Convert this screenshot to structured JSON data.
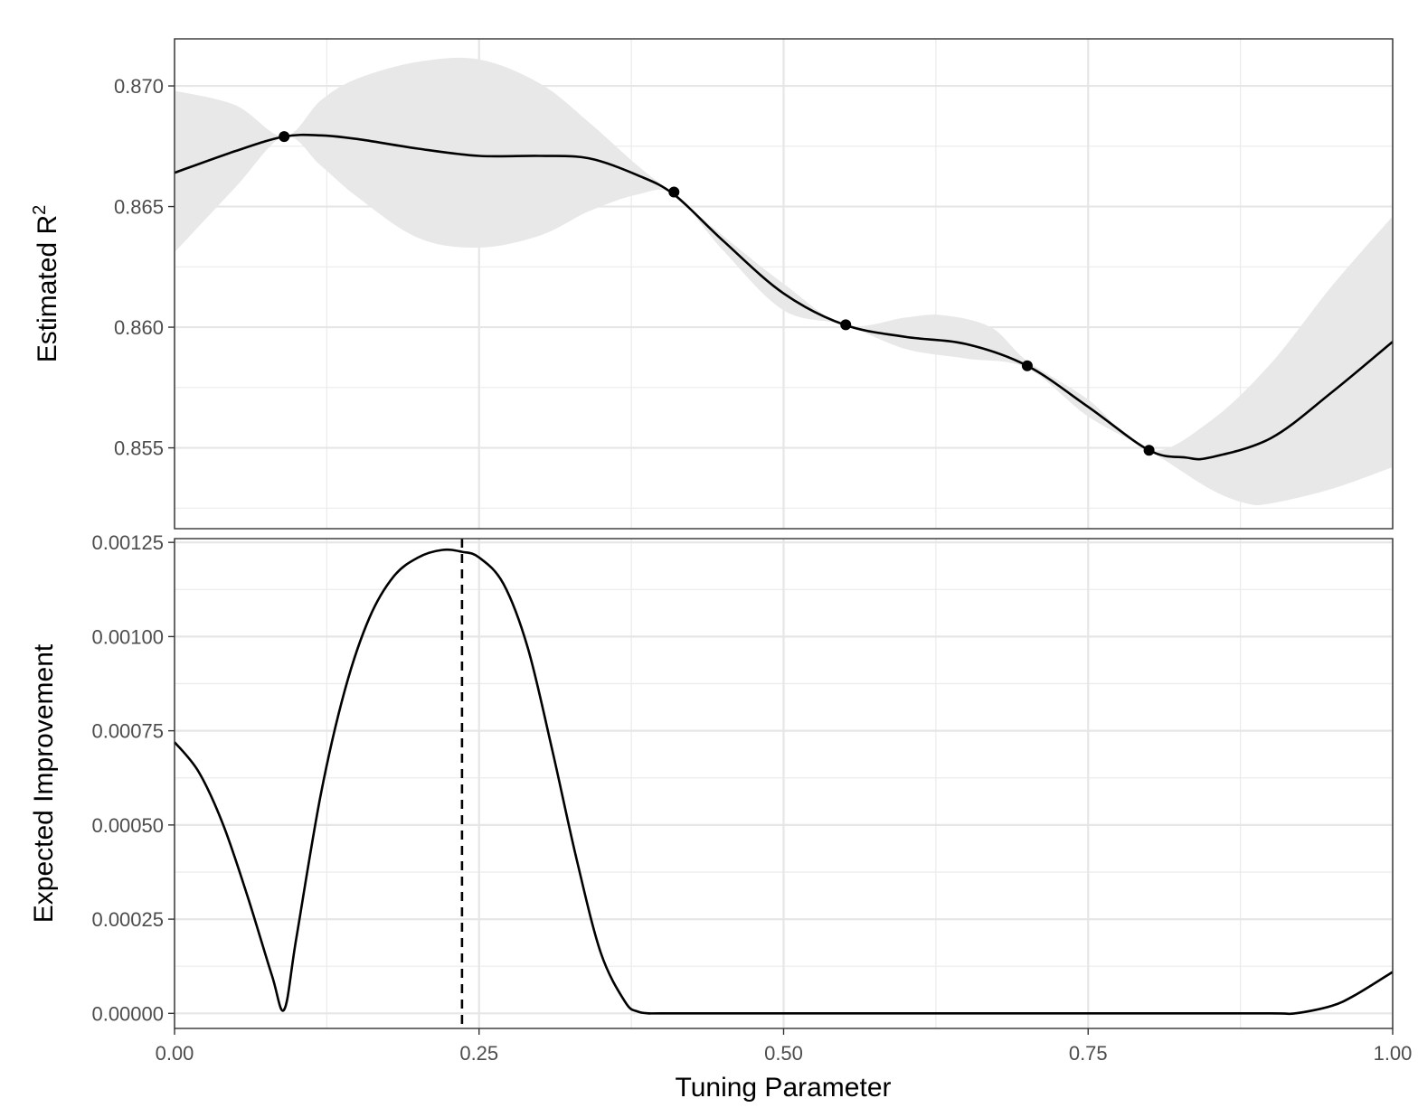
{
  "figure": {
    "xlabel": "Tuning Parameter",
    "x_ticks": [
      "0.00",
      "0.25",
      "0.50",
      "0.75",
      "1.00"
    ]
  },
  "chart_data": [
    {
      "type": "line",
      "panel": "top",
      "ylabel": "Estimated R",
      "ylabel_superscript": "2",
      "xlabel": "Tuning Parameter",
      "xlim": [
        0,
        1
      ],
      "ylim": [
        0.85165,
        0.87195
      ],
      "grid": true,
      "x_ticks": [
        0,
        0.25,
        0.5,
        0.75,
        1.0
      ],
      "y_ticks": [
        0.855,
        0.86,
        0.865,
        0.87
      ],
      "y_tick_labels": [
        "0.855",
        "0.860",
        "0.865",
        "0.870"
      ],
      "colors": {
        "line": "#000000",
        "band": "#e8e8e8",
        "points": "#000000"
      },
      "series": [
        {
          "role": "mean",
          "x": [
            0.0,
            0.05,
            0.09,
            0.12,
            0.15,
            0.2,
            0.25,
            0.3,
            0.34,
            0.38,
            0.41,
            0.45,
            0.5,
            0.55,
            0.6,
            0.65,
            0.7,
            0.75,
            0.8,
            0.83,
            0.85,
            0.9,
            0.95,
            1.0
          ],
          "y": [
            0.8664,
            0.8673,
            0.8679,
            0.86795,
            0.8678,
            0.8674,
            0.8671,
            0.8671,
            0.867,
            0.8663,
            0.8655,
            0.8636,
            0.8614,
            0.8601,
            0.8596,
            0.8593,
            0.8584,
            0.8567,
            0.8549,
            0.8546,
            0.8546,
            0.8554,
            0.8573,
            0.8594
          ]
        },
        {
          "role": "band_upper",
          "x": [
            0.0,
            0.05,
            0.09,
            0.12,
            0.15,
            0.2,
            0.25,
            0.3,
            0.34,
            0.38,
            0.41,
            0.45,
            0.5,
            0.55,
            0.6,
            0.63,
            0.67,
            0.7,
            0.75,
            0.8,
            0.85,
            0.9,
            0.95,
            1.0
          ],
          "y": [
            0.8698,
            0.8692,
            0.8679,
            0.8694,
            0.8703,
            0.871,
            0.8711,
            0.8701,
            0.8685,
            0.8667,
            0.8655,
            0.8638,
            0.8618,
            0.8601,
            0.8604,
            0.8605,
            0.86,
            0.8586,
            0.857,
            0.8549,
            0.8561,
            0.8585,
            0.8617,
            0.8646
          ]
        },
        {
          "role": "band_lower",
          "x": [
            0.0,
            0.05,
            0.09,
            0.12,
            0.15,
            0.2,
            0.25,
            0.3,
            0.34,
            0.38,
            0.41,
            0.45,
            0.5,
            0.55,
            0.6,
            0.65,
            0.7,
            0.75,
            0.8,
            0.85,
            0.88,
            0.9,
            0.95,
            1.0
          ],
          "y": [
            0.8631,
            0.8658,
            0.8679,
            0.8667,
            0.8654,
            0.8637,
            0.8633,
            0.8638,
            0.8648,
            0.8655,
            0.8655,
            0.8632,
            0.8607,
            0.8601,
            0.8591,
            0.8587,
            0.8583,
            0.8563,
            0.8549,
            0.8533,
            0.8527,
            0.8527,
            0.8533,
            0.8542
          ]
        },
        {
          "role": "points",
          "x": [
            0.09,
            0.41,
            0.551,
            0.7,
            0.8
          ],
          "y": [
            0.8679,
            0.8656,
            0.8601,
            0.8584,
            0.8549
          ]
        }
      ]
    },
    {
      "type": "line",
      "panel": "bottom",
      "ylabel": "Expected Improvement",
      "xlabel": "Tuning Parameter",
      "xlim": [
        0,
        1
      ],
      "ylim": [
        -4e-05,
        0.00126
      ],
      "grid": true,
      "x_ticks": [
        0,
        0.25,
        0.5,
        0.75,
        1.0
      ],
      "x_tick_labels": [
        "0.00",
        "0.25",
        "0.50",
        "0.75",
        "1.00"
      ],
      "y_ticks": [
        0.0,
        0.00025,
        0.0005,
        0.00075,
        0.001,
        0.00125
      ],
      "y_tick_labels": [
        "0.00000",
        "0.00025",
        "0.00050",
        "0.00075",
        "0.00100",
        "0.00125"
      ],
      "colors": {
        "line": "#000000",
        "vline": "#000000"
      },
      "vline_x": 0.236,
      "series": [
        {
          "role": "expected_improvement",
          "x": [
            0.0,
            0.02,
            0.04,
            0.06,
            0.08,
            0.09,
            0.1,
            0.12,
            0.14,
            0.16,
            0.18,
            0.2,
            0.22,
            0.236,
            0.25,
            0.27,
            0.29,
            0.31,
            0.33,
            0.35,
            0.37,
            0.38,
            0.39,
            0.4,
            0.5,
            0.6,
            0.7,
            0.8,
            0.9,
            0.92,
            0.95,
            0.97,
            1.0
          ],
          "y": [
            0.00072,
            0.00064,
            0.0005,
            0.00031,
            0.0001,
            1e-05,
            0.0002,
            0.00058,
            0.00086,
            0.00105,
            0.00116,
            0.00121,
            0.00123,
            0.001225,
            0.00121,
            0.00114,
            0.00097,
            0.0007,
            0.00041,
            0.00016,
            3e-05,
            5e-06,
            0.0,
            0.0,
            0.0,
            0.0,
            0.0,
            0.0,
            0.0,
            0.0,
            2e-05,
            5e-05,
            0.00011
          ]
        }
      ]
    }
  ]
}
